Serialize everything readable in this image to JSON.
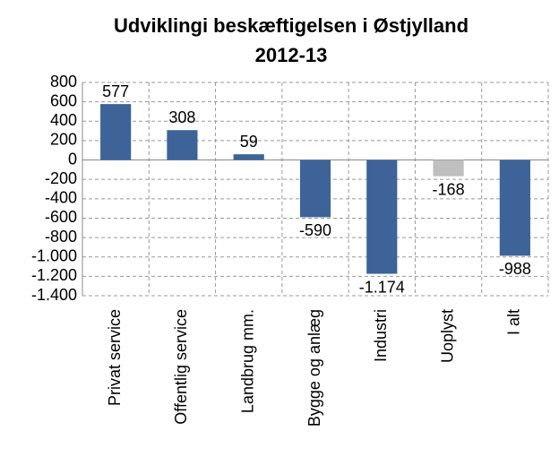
{
  "chart_data": {
    "type": "bar",
    "title": [
      "Udviklingi beskæftigelsen i Østjylland",
      "2012-13"
    ],
    "categories": [
      "Privat service",
      "Offentlig service",
      "Landbrug mm.",
      "Bygge og anlæg",
      "Industri",
      "Uoplyst",
      "I alt"
    ],
    "values": [
      577,
      308,
      59,
      -590,
      -1174,
      -168,
      -988
    ],
    "value_labels": [
      "577",
      "308",
      "59",
      "-590",
      "-1.174",
      "-168",
      "-988"
    ],
    "colors": [
      "#3d6399",
      "#3d6399",
      "#3d6399",
      "#3d6399",
      "#3d6399",
      "#bfbfbf",
      "#3d6399"
    ],
    "ylim": [
      -1400,
      800
    ],
    "yticks": [
      800,
      600,
      400,
      200,
      0,
      -200,
      -400,
      -600,
      -800,
      {
        "value": -1000,
        "label": "-1.000"
      },
      {
        "value": -1200,
        "label": "-1.200"
      },
      {
        "value": -1400,
        "label": "-1.400"
      }
    ],
    "grid": true
  }
}
